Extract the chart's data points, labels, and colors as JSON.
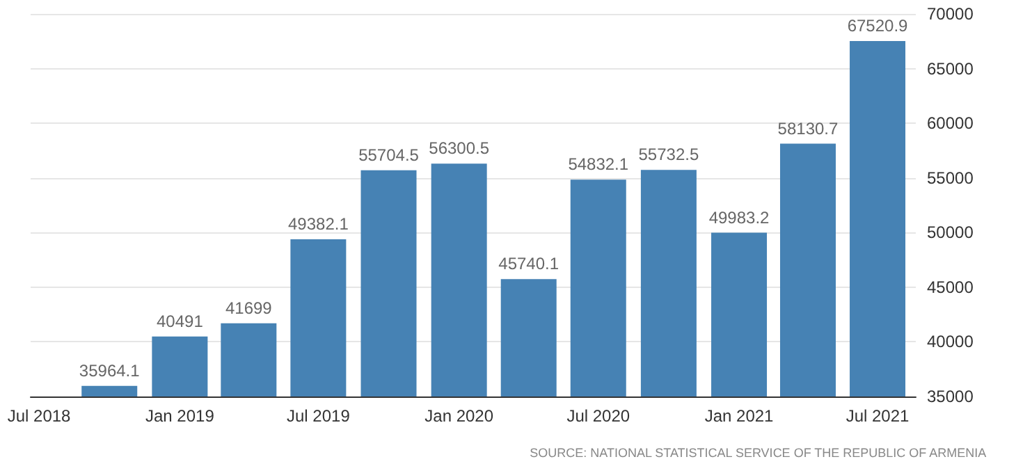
{
  "chart_data": {
    "type": "bar",
    "x": [
      "2018-10",
      "2019-01",
      "2019-04",
      "2019-07",
      "2019-10",
      "2020-01",
      "2020-04",
      "2020-07",
      "2020-10",
      "2021-01",
      "2021-04",
      "2021-07"
    ],
    "values": [
      35964.1,
      40491,
      41699,
      49382.1,
      55704.5,
      56300.5,
      45740.1,
      54832.1,
      55732.5,
      49983.2,
      58130.7,
      67520.9
    ],
    "color": "#4682b4",
    "data_labels": true,
    "xlim": [
      "2018-06-20",
      "2021-08-20"
    ],
    "xticks": [
      {
        "value": "2018-07",
        "label": "Jul 2018"
      },
      {
        "value": "2019-01",
        "label": "Jan 2019"
      },
      {
        "value": "2019-07",
        "label": "Jul 2019"
      },
      {
        "value": "2020-01",
        "label": "Jan 2020"
      },
      {
        "value": "2020-07",
        "label": "Jul 2020"
      },
      {
        "value": "2021-01",
        "label": "Jan 2021"
      },
      {
        "value": "2021-07",
        "label": "Jul 2021"
      }
    ],
    "ylim": [
      35000,
      70000
    ],
    "yticks": [
      35000,
      40000,
      45000,
      50000,
      55000,
      60000,
      65000,
      70000
    ],
    "grid": "y",
    "annotations": [
      "SOURCE: NATIONAL STATISTICAL SERVICE OF THE REPUBLIC OF ARMENIA"
    ]
  }
}
